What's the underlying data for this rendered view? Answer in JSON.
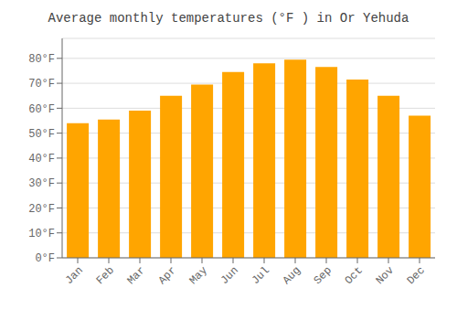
{
  "chart_data": {
    "type": "bar",
    "title": "Average monthly temperatures (°F ) in Or Yehuda",
    "categories": [
      "Jan",
      "Feb",
      "Mar",
      "Apr",
      "May",
      "Jun",
      "Jul",
      "Aug",
      "Sep",
      "Oct",
      "Nov",
      "Dec"
    ],
    "values": [
      54,
      55.5,
      59,
      65,
      69.5,
      74.5,
      78,
      79.5,
      76.5,
      71.5,
      65,
      57
    ],
    "color": "#FFA500",
    "ylim": [
      0,
      88
    ],
    "yticks": [
      {
        "value": 0,
        "label": "0°F"
      },
      {
        "value": 10,
        "label": "10°F"
      },
      {
        "value": 20,
        "label": "20°F"
      },
      {
        "value": 30,
        "label": "30°F"
      },
      {
        "value": 40,
        "label": "40°F"
      },
      {
        "value": 50,
        "label": "50°F"
      },
      {
        "value": 60,
        "label": "60°F"
      },
      {
        "value": 70,
        "label": "70°F"
      },
      {
        "value": 80,
        "label": "80°F"
      }
    ],
    "grid": true
  }
}
